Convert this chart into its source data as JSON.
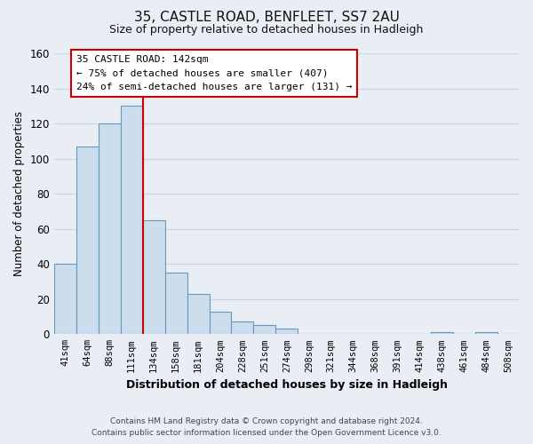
{
  "title": "35, CASTLE ROAD, BENFLEET, SS7 2AU",
  "subtitle": "Size of property relative to detached houses in Hadleigh",
  "xlabel": "Distribution of detached houses by size in Hadleigh",
  "ylabel": "Number of detached properties",
  "bar_labels": [
    "41sqm",
    "64sqm",
    "88sqm",
    "111sqm",
    "134sqm",
    "158sqm",
    "181sqm",
    "204sqm",
    "228sqm",
    "251sqm",
    "274sqm",
    "298sqm",
    "321sqm",
    "344sqm",
    "368sqm",
    "391sqm",
    "414sqm",
    "438sqm",
    "461sqm",
    "484sqm",
    "508sqm"
  ],
  "bar_values": [
    40,
    107,
    120,
    130,
    65,
    35,
    23,
    13,
    7,
    5,
    3,
    0,
    0,
    0,
    0,
    0,
    0,
    1,
    0,
    1,
    0
  ],
  "bar_color": "#ccdded",
  "bar_edge_color": "#6699bb",
  "ylim": [
    0,
    160
  ],
  "yticks": [
    0,
    20,
    40,
    60,
    80,
    100,
    120,
    140,
    160
  ],
  "property_line_bar_index": 3.5,
  "property_line_color": "#cc0000",
  "annotation_title": "35 CASTLE ROAD: 142sqm",
  "annotation_line1": "← 75% of detached houses are smaller (407)",
  "annotation_line2": "24% of semi-detached houses are larger (131) →",
  "annotation_box_color": "#ffffff",
  "annotation_box_edge": "#cc0000",
  "footer_line1": "Contains HM Land Registry data © Crown copyright and database right 2024.",
  "footer_line2": "Contains public sector information licensed under the Open Government Licence v3.0.",
  "background_color": "#e8eef4",
  "plot_bg_color": "#e8eef4",
  "grid_color": "#c8d4de"
}
